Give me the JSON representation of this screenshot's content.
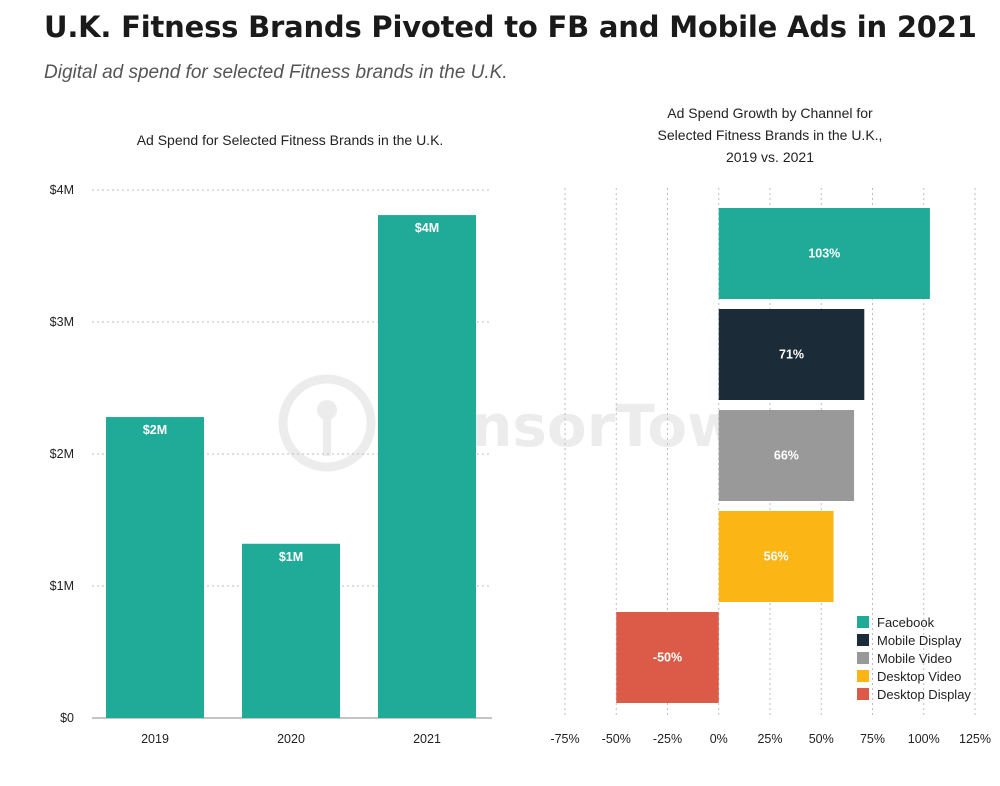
{
  "header": {
    "title": "U.K. Fitness Brands Pivoted to FB and Mobile Ads in 2021",
    "subtitle": "Digital ad spend for selected Fitness brands in the U.K."
  },
  "watermark": "SensorTower",
  "chart_data": [
    {
      "type": "bar",
      "title": "Ad Spend for Selected Fitness Brands in the U.K.",
      "categories": [
        "2019",
        "2020",
        "2021"
      ],
      "values": [
        2.28,
        1.32,
        3.81
      ],
      "value_labels": [
        "$2M",
        "$1M",
        "$4M"
      ],
      "ylim": [
        0,
        4
      ],
      "yticks": [
        0,
        1,
        2,
        3,
        4
      ],
      "ytick_labels": [
        "$0",
        "$1M",
        "$2M",
        "$3M",
        "$4M"
      ],
      "xlabel": "",
      "ylabel": "",
      "grid": true,
      "color": "#1fab98"
    },
    {
      "type": "bar",
      "orientation": "horizontal",
      "title_lines": [
        "Ad Spend Growth by Channel for",
        "Selected Fitness Brands in the U.K.,",
        "2019 vs. 2021"
      ],
      "categories": [
        "Facebook",
        "Mobile Display",
        "Mobile Video",
        "Desktop Video",
        "Desktop Display"
      ],
      "values": [
        103,
        71,
        66,
        56,
        -50
      ],
      "value_labels": [
        "103%",
        "71%",
        "66%",
        "56%",
        "-50%"
      ],
      "colors": [
        "#1fab98",
        "#1c2b38",
        "#999999",
        "#fbb515",
        "#db5a48"
      ],
      "xlim": [
        -75,
        125
      ],
      "xticks": [
        -75,
        -50,
        -25,
        0,
        25,
        50,
        75,
        100,
        125
      ],
      "xtick_labels": [
        "-75%",
        "-50%",
        "-25%",
        "0%",
        "25%",
        "50%",
        "75%",
        "100%",
        "125%"
      ],
      "grid": true,
      "legend": {
        "position": "bottom-right",
        "entries": [
          "Facebook",
          "Mobile Display",
          "Mobile Video",
          "Desktop Video",
          "Desktop Display"
        ]
      }
    }
  ]
}
